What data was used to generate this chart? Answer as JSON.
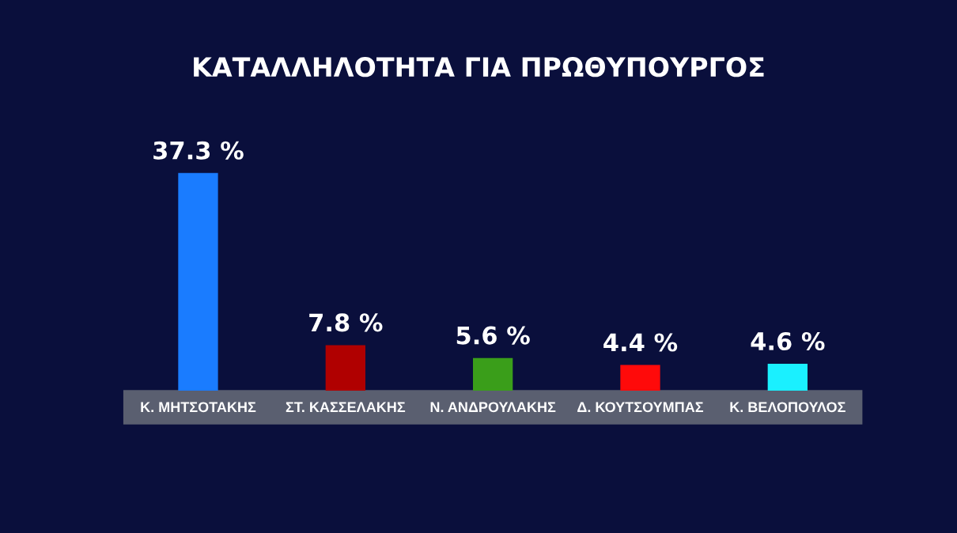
{
  "chart_data": {
    "type": "bar",
    "title": "ΚΑΤΑΛΛΗΛΟΤΗΤΑ ΓΙΑ ΠΡΩΘΥΠΟΥΡΓΟΣ",
    "categories": [
      "Κ. ΜΗΤΣΟΤΑΚΗΣ",
      "ΣΤ. ΚΑΣΣΕΛΑΚΗΣ",
      "Ν. ΑΝΔΡΟΥΛΑΚΗΣ",
      "Δ. ΚΟΥΤΣΟΥΜΠΑΣ",
      "Κ. ΒΕΛΟΠΟΥΛΟΣ"
    ],
    "values": [
      37.3,
      7.8,
      5.6,
      4.4,
      4.6
    ],
    "colors": [
      "#1a7cff",
      "#b00000",
      "#3a9e1a",
      "#ff0a0a",
      "#1af0ff"
    ],
    "value_labels": [
      "37.3 %",
      "7.8 %",
      "5.6 %",
      "4.4 %",
      "4.6 %"
    ],
    "grid": false,
    "legend": false
  }
}
